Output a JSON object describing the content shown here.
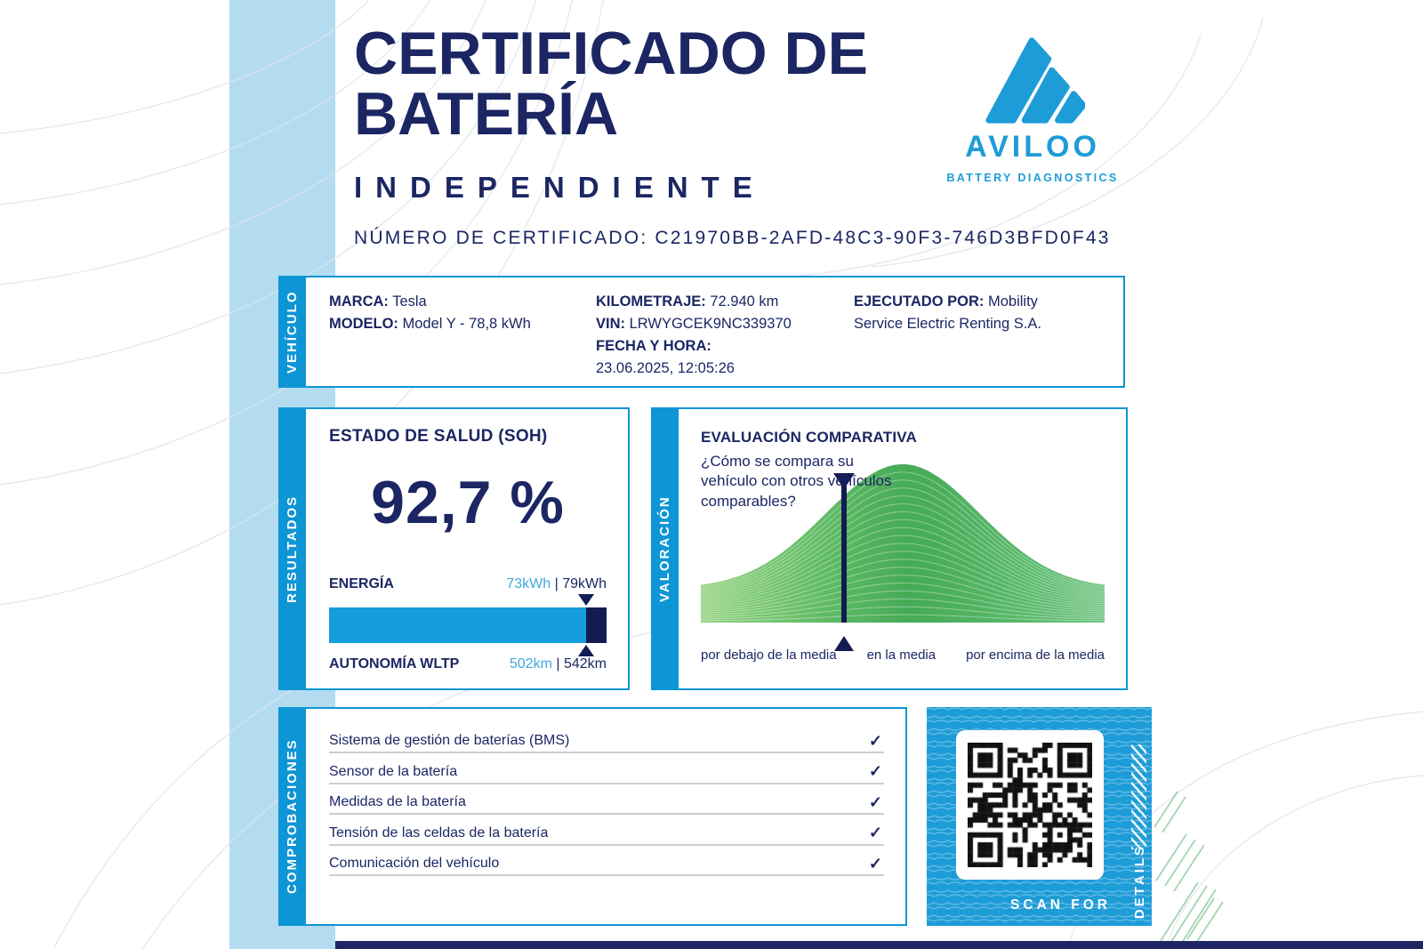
{
  "page": {
    "title_line1": "CERTIFICADO DE",
    "title_line2": "BATERÍA",
    "subtitle": "INDEPENDIENTE",
    "cert_label": "NÚMERO DE CERTIFICADO:",
    "cert_number": "C21970BB-2AFD-48C3-90F3-746D3BFD0F43"
  },
  "brand": {
    "wordmark": "AVILOO",
    "tagline": "BATTERY DIAGNOSTICS",
    "logo_icon": "aviloo-mountain-slashes-icon",
    "accent_color": "#1E9CD8",
    "navy_color": "#1B2663"
  },
  "vehicle": {
    "tab": "VEHÍCULO",
    "marca_label": "MARCA:",
    "marca_value": "Tesla",
    "modelo_label": "MODELO:",
    "modelo_value": "Model Y - 78,8 kWh",
    "km_label": "KILOMETRAJE:",
    "km_value": "72.940 km",
    "vin_label": "VIN:",
    "vin_value": "LRWYGCEK9NC339370",
    "fecha_label": "FECHA Y HORA:",
    "fecha_value": "23.06.2025, 12:05:26",
    "ejecutado_label": "EJECUTADO POR:",
    "ejecutado_value": "Mobility Service Electric Renting S.A."
  },
  "results": {
    "tab": "RESULTADOS",
    "soh_title": "ESTADO DE SALUD (SOH)",
    "soh_value": "92,7 %",
    "soh_percent": 92.7,
    "energy_label": "ENERGÍA",
    "energy_current": "73kWh",
    "divider": "|",
    "energy_original": "79kWh",
    "range_label": "AUTONOMÍA WLTP",
    "range_current": "502km",
    "range_original": "542km"
  },
  "valoracion": {
    "tab": "VALORACIÓN"
  },
  "checks": {
    "tab": "COMPROBACIONES",
    "check_glyph": "✓",
    "items": [
      "Sistema de gestión de baterías (BMS)",
      "Sensor de la batería",
      "Medidas de la batería",
      "Tensión de las celdas de la batería",
      "Comunicación del vehículo"
    ]
  },
  "qr": {
    "scan_label": "SCAN FOR",
    "details_label": "DETAILS"
  },
  "chart_data": [
    {
      "type": "area",
      "name": "evaluacion-comparativa",
      "title": "EVALUACIÓN COMPARATIVA",
      "question": "¿Cómo se compara su vehículo con otros vehículos comparables?",
      "x_labels": [
        "por debajo de la media",
        "en la media",
        "por encima de la media"
      ],
      "curve": "normal-distribution-layered-green-bands",
      "peak_position": 0.5,
      "sigma_fraction": 0.19,
      "layers": 20,
      "marker_position": 0.354,
      "colors": {
        "fill_left": "#93D27F",
        "fill_center": "#46AA57",
        "fill_right": "#6EC47F",
        "band_gap": "rgba(255,255,255,0.38)",
        "marker": "#131C52"
      }
    },
    {
      "type": "bar",
      "name": "soh-energy-gauge",
      "soh_percent": 92.7,
      "energy_current_kwh": 73,
      "energy_original_kwh": 79,
      "range_current_km": 502,
      "range_original_km": 542,
      "colors": {
        "fill": "#169DDE",
        "remainder": "#131C52"
      }
    }
  ]
}
